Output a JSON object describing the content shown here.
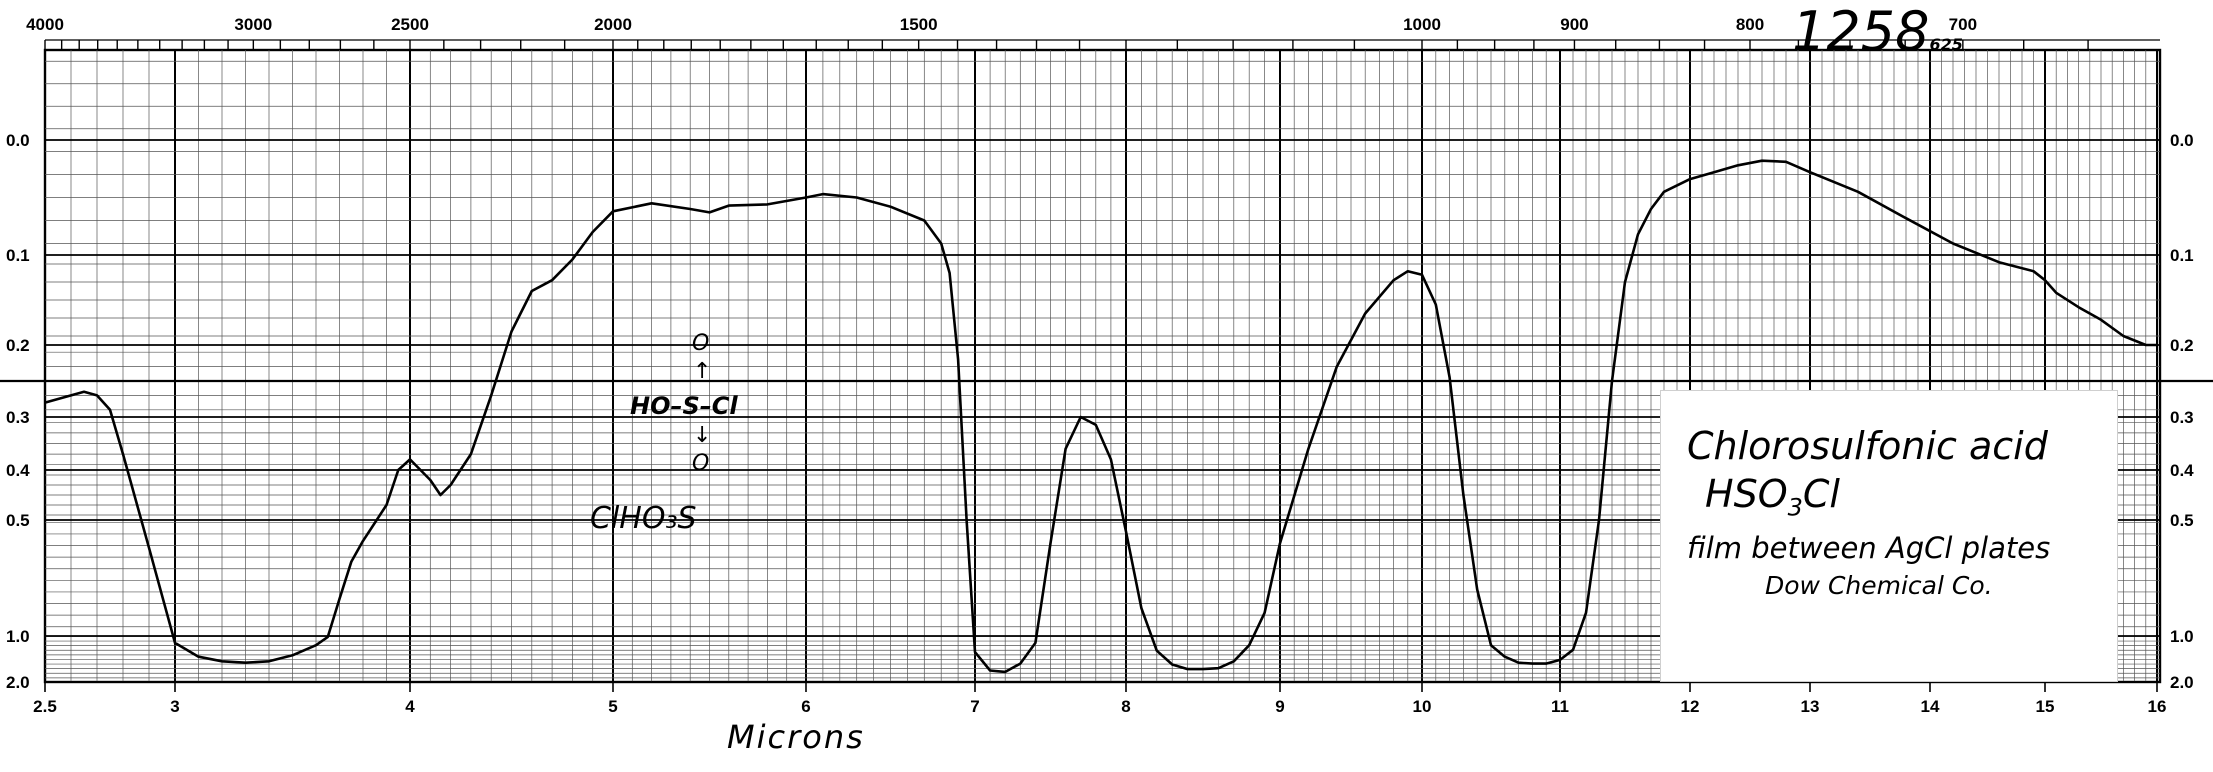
{
  "chart_data": {
    "type": "line",
    "title": "",
    "xlabel": "Microns",
    "ylabel": "",
    "x_axis": {
      "unit": "microns",
      "range": [
        2.5,
        16
      ],
      "ticks": [
        {
          "v": 2.5,
          "label": "2.5"
        },
        {
          "v": 3,
          "label": "3"
        },
        {
          "v": 4,
          "label": "4"
        },
        {
          "v": 5,
          "label": "5"
        },
        {
          "v": 6,
          "label": "6"
        },
        {
          "v": 7,
          "label": "7"
        },
        {
          "v": 8,
          "label": "8"
        },
        {
          "v": 9,
          "label": "9"
        },
        {
          "v": 10,
          "label": "10"
        },
        {
          "v": 11,
          "label": "11"
        },
        {
          "v": 12,
          "label": "12"
        },
        {
          "v": 13,
          "label": "13"
        },
        {
          "v": 14,
          "label": "14"
        },
        {
          "v": 15,
          "label": "15"
        },
        {
          "v": 16,
          "label": "16"
        }
      ]
    },
    "top_axis": {
      "unit": "wavenumber (cm-1)",
      "ticks": [
        {
          "v": 4000,
          "label": "4000"
        },
        {
          "v": 3000,
          "label": "3000"
        },
        {
          "v": 2500,
          "label": "2500"
        },
        {
          "v": 2000,
          "label": "2000"
        },
        {
          "v": 1500,
          "label": "1500"
        },
        {
          "v": 1000,
          "label": "1000"
        },
        {
          "v": 900,
          "label": "900"
        },
        {
          "v": 800,
          "label": "800"
        },
        {
          "v": 700,
          "label": "700"
        }
      ]
    },
    "y_axis": {
      "unit": "absorbance",
      "range": [
        -0.08,
        2.0
      ],
      "ticks": [
        {
          "v": 0.0,
          "label": "0.0"
        },
        {
          "v": 0.1,
          "label": "0.1"
        },
        {
          "v": 0.2,
          "label": "0.2"
        },
        {
          "v": 0.3,
          "label": "0.3"
        },
        {
          "v": 0.4,
          "label": "0.4"
        },
        {
          "v": 0.5,
          "label": "0.5"
        },
        {
          "v": 1.0,
          "label": "1.0"
        },
        {
          "v": 2.0,
          "label": "2.0"
        }
      ]
    },
    "grid": true,
    "series": [
      {
        "x": [
          2.5,
          2.6,
          2.65,
          2.7,
          2.75,
          2.8,
          2.9,
          3.0,
          3.1,
          3.2,
          3.3,
          3.4,
          3.5,
          3.6,
          3.65,
          3.7,
          3.75,
          3.8,
          3.9,
          3.95,
          4.0,
          4.1,
          4.15,
          4.2,
          4.3,
          4.4,
          4.5,
          4.6,
          4.7,
          4.8,
          4.9,
          5.0,
          5.2,
          5.4,
          5.5,
          5.6,
          5.8,
          6.0,
          6.1,
          6.3,
          6.5,
          6.7,
          6.8,
          6.85,
          6.9,
          6.95,
          7.0,
          7.1,
          7.2,
          7.3,
          7.4,
          7.5,
          7.6,
          7.7,
          7.8,
          7.9,
          8.0,
          8.1,
          8.2,
          8.3,
          8.4,
          8.5,
          8.6,
          8.7,
          8.8,
          8.9,
          9.0,
          9.2,
          9.4,
          9.6,
          9.8,
          9.9,
          10.0,
          10.1,
          10.2,
          10.3,
          10.4,
          10.5,
          10.6,
          10.7,
          10.8,
          10.9,
          11.0,
          11.1,
          11.2,
          11.3,
          11.4,
          11.5,
          11.6,
          11.7,
          11.8,
          12.0,
          12.2,
          12.4,
          12.6,
          12.8,
          13.0,
          13.4,
          13.8,
          14.2,
          14.6,
          14.9,
          15.0,
          15.1,
          15.3,
          15.5,
          15.7,
          15.9,
          16.0
        ],
        "y": [
          0.28,
          0.27,
          0.265,
          0.27,
          0.29,
          0.37,
          0.62,
          1.15,
          1.45,
          1.55,
          1.58,
          1.55,
          1.42,
          1.2,
          1.02,
          0.84,
          0.68,
          0.59,
          0.47,
          0.4,
          0.38,
          0.42,
          0.45,
          0.43,
          0.37,
          0.27,
          0.185,
          0.14,
          0.128,
          0.105,
          0.08,
          0.062,
          0.055,
          0.06,
          0.063,
          0.057,
          0.056,
          0.05,
          0.047,
          0.05,
          0.058,
          0.07,
          0.09,
          0.12,
          0.22,
          0.5,
          1.35,
          1.75,
          1.78,
          1.6,
          1.15,
          0.6,
          0.36,
          0.3,
          0.315,
          0.38,
          0.55,
          0.88,
          1.32,
          1.62,
          1.72,
          1.72,
          1.7,
          1.55,
          1.2,
          0.9,
          0.6,
          0.36,
          0.23,
          0.165,
          0.128,
          0.118,
          0.122,
          0.155,
          0.245,
          0.45,
          0.8,
          1.2,
          1.45,
          1.58,
          1.6,
          1.6,
          1.52,
          1.3,
          0.9,
          0.5,
          0.25,
          0.13,
          0.082,
          0.06,
          0.045,
          0.034,
          0.028,
          0.022,
          0.018,
          0.019,
          0.028,
          0.045,
          0.068,
          0.09,
          0.108,
          0.118,
          0.128,
          0.142,
          0.158,
          0.172,
          0.19,
          0.2,
          0.2
        ]
      }
    ],
    "annotations": {
      "compound_name": "Chlorosulfonic acid",
      "formula_main": "HSO",
      "formula_sub": "3",
      "formula_tail": "Cl",
      "sample_note": "film between AgCl plates",
      "source": "Dow Chemical Co.",
      "struct_top": "O",
      "struct_arrow_up": "↑",
      "struct_mid": "HO–S–Cl",
      "struct_arrow_down": "↓",
      "struct_bottom": "O",
      "empirical": "ClHO₃S",
      "corner_number": "1258",
      "corner_small": "625"
    }
  },
  "colors": {
    "background": "#ffffff",
    "grid_major": "#000000",
    "grid_minor": "#555555",
    "trace": "#000000"
  }
}
